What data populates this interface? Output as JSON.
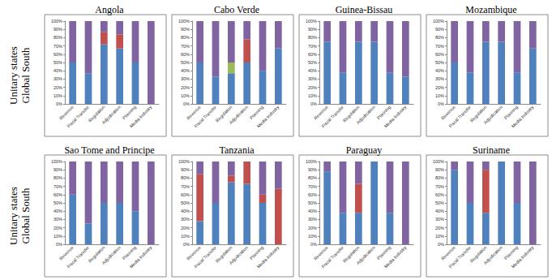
{
  "row_labels": [
    [
      "Unitary states",
      "Global South"
    ],
    [
      "Unitary states",
      "Global South"
    ]
  ],
  "chart_data": [
    {
      "type": "bar",
      "title": "Angola",
      "stacked": true,
      "grid": false,
      "categories": [
        "Revenue",
        "Fiscal Transfer",
        "Regulation",
        "Adjudication",
        "Planning",
        "Media Industry"
      ],
      "ylim": [
        0,
        100
      ],
      "yticks": [
        {
          "value": 0,
          "label": "0%"
        },
        {
          "value": 10,
          "label": "10%"
        },
        {
          "value": 20,
          "label": "20%"
        },
        {
          "value": 30,
          "label": "30%"
        },
        {
          "value": 40,
          "label": "40%"
        },
        {
          "value": 50,
          "label": "50%"
        },
        {
          "value": 60,
          "label": "60%"
        },
        {
          "value": 70,
          "label": "70%"
        },
        {
          "value": 80,
          "label": "80%"
        },
        {
          "value": 90,
          "label": "90%"
        },
        {
          "value": 100,
          "label": "100%"
        }
      ],
      "series": [
        {
          "color": "#4f81bd",
          "values": [
            50,
            37,
            72,
            67,
            50,
            0
          ]
        },
        {
          "color": "#c0504d",
          "values": [
            0,
            0,
            15,
            17,
            0,
            0
          ]
        },
        {
          "color": "#8064a2",
          "values": [
            50,
            63,
            13,
            16,
            50,
            100
          ]
        }
      ]
    },
    {
      "type": "bar",
      "title": "Cabo Verde",
      "stacked": true,
      "grid": false,
      "categories": [
        "Revenue",
        "Fiscal Transfer",
        "Regulation",
        "Adjudication",
        "Planning",
        "Media Industry"
      ],
      "ylim": [
        0,
        100
      ],
      "yticks": [
        {
          "value": 0,
          "label": "0%"
        },
        {
          "value": 10,
          "label": "10%"
        },
        {
          "value": 20,
          "label": "20%"
        },
        {
          "value": 30,
          "label": "30%"
        },
        {
          "value": 40,
          "label": "40%"
        },
        {
          "value": 50,
          "label": "50%"
        },
        {
          "value": 60,
          "label": "60%"
        },
        {
          "value": 70,
          "label": "70%"
        },
        {
          "value": 80,
          "label": "80%"
        },
        {
          "value": 90,
          "label": "90%"
        },
        {
          "value": 100,
          "label": "100%"
        }
      ],
      "series": [
        {
          "color": "#4f81bd",
          "values": [
            50,
            33,
            37,
            50,
            40,
            67
          ]
        },
        {
          "color": "#c0504d",
          "values": [
            0,
            0,
            0,
            28,
            0,
            0
          ]
        },
        {
          "color": "#9bbb59",
          "values": [
            0,
            0,
            13,
            0,
            0,
            0
          ]
        },
        {
          "color": "#8064a2",
          "values": [
            50,
            67,
            50,
            22,
            60,
            33
          ]
        }
      ]
    },
    {
      "type": "bar",
      "title": "Guinea-Bissau",
      "stacked": true,
      "grid": false,
      "categories": [
        "Revenue",
        "Fiscal Transfer",
        "Regulation",
        "Adjudication",
        "Planning",
        "Media Industry"
      ],
      "ylim": [
        0,
        100
      ],
      "yticks": [
        {
          "value": 0,
          "label": "0%"
        },
        {
          "value": 10,
          "label": "10%"
        },
        {
          "value": 20,
          "label": "20%"
        },
        {
          "value": 30,
          "label": "30%"
        },
        {
          "value": 40,
          "label": "40%"
        },
        {
          "value": 50,
          "label": "50%"
        },
        {
          "value": 60,
          "label": "60%"
        },
        {
          "value": 70,
          "label": "70%"
        },
        {
          "value": 80,
          "label": "80%"
        },
        {
          "value": 90,
          "label": "90%"
        },
        {
          "value": 100,
          "label": "100%"
        }
      ],
      "series": [
        {
          "color": "#4f81bd",
          "values": [
            75,
            38,
            75,
            75,
            38,
            33
          ]
        },
        {
          "color": "#8064a2",
          "values": [
            25,
            62,
            25,
            25,
            62,
            67
          ]
        }
      ]
    },
    {
      "type": "bar",
      "title": "Mozambique",
      "stacked": true,
      "grid": false,
      "categories": [
        "Revenue",
        "Fiscal Transfer",
        "Regulation",
        "Adjudication",
        "Planning",
        "Media Industry"
      ],
      "ylim": [
        0,
        100
      ],
      "yticks": [
        {
          "value": 0,
          "label": "0%"
        },
        {
          "value": 10,
          "label": "10%"
        },
        {
          "value": 20,
          "label": "20%"
        },
        {
          "value": 30,
          "label": "30%"
        },
        {
          "value": 40,
          "label": "40%"
        },
        {
          "value": 50,
          "label": "50%"
        },
        {
          "value": 60,
          "label": "60%"
        },
        {
          "value": 70,
          "label": "70%"
        },
        {
          "value": 80,
          "label": "80%"
        },
        {
          "value": 90,
          "label": "90%"
        },
        {
          "value": 100,
          "label": "100%"
        }
      ],
      "series": [
        {
          "color": "#4f81bd",
          "values": [
            50,
            38,
            75,
            75,
            38,
            67
          ]
        },
        {
          "color": "#8064a2",
          "values": [
            50,
            62,
            25,
            25,
            62,
            33
          ]
        }
      ]
    },
    {
      "type": "bar",
      "title": "Sao Tome and Principe",
      "stacked": true,
      "grid": false,
      "categories": [
        "Revenue",
        "Fiscal Transfer",
        "Regulation",
        "Adjudication",
        "Planning",
        "Media Industry"
      ],
      "ylim": [
        0,
        100
      ],
      "yticks": [
        {
          "value": 0,
          "label": "0%"
        },
        {
          "value": 10,
          "label": "10%"
        },
        {
          "value": 20,
          "label": "20%"
        },
        {
          "value": 30,
          "label": "30%"
        },
        {
          "value": 40,
          "label": "40%"
        },
        {
          "value": 50,
          "label": "50%"
        },
        {
          "value": 60,
          "label": "60%"
        },
        {
          "value": 70,
          "label": "70%"
        },
        {
          "value": 80,
          "label": "80%"
        },
        {
          "value": 90,
          "label": "90%"
        },
        {
          "value": 100,
          "label": "100%"
        }
      ],
      "series": [
        {
          "color": "#4f81bd",
          "values": [
            60,
            25,
            50,
            50,
            40,
            0
          ]
        },
        {
          "color": "#8064a2",
          "values": [
            40,
            75,
            50,
            50,
            60,
            100
          ]
        }
      ]
    },
    {
      "type": "bar",
      "title": "Tanzania",
      "stacked": true,
      "grid": false,
      "categories": [
        "Revenue",
        "Fiscal Transfer",
        "Regulation",
        "Adjudication",
        "Planning",
        "Media Industry"
      ],
      "ylim": [
        0,
        100
      ],
      "yticks": [
        {
          "value": 0,
          "label": "0%"
        },
        {
          "value": 10,
          "label": "10%"
        },
        {
          "value": 20,
          "label": "20%"
        },
        {
          "value": 30,
          "label": "30%"
        },
        {
          "value": 40,
          "label": "40%"
        },
        {
          "value": 50,
          "label": "50%"
        },
        {
          "value": 60,
          "label": "60%"
        },
        {
          "value": 70,
          "label": "70%"
        },
        {
          "value": 80,
          "label": "80%"
        },
        {
          "value": 90,
          "label": "90%"
        },
        {
          "value": 100,
          "label": "100%"
        }
      ],
      "series": [
        {
          "color": "#4f81bd",
          "values": [
            28,
            50,
            75,
            73,
            50,
            0
          ]
        },
        {
          "color": "#c0504d",
          "values": [
            57,
            0,
            8,
            27,
            10,
            67
          ]
        },
        {
          "color": "#8064a2",
          "values": [
            15,
            50,
            17,
            0,
            40,
            33
          ]
        }
      ]
    },
    {
      "type": "bar",
      "title": "Paraguay",
      "stacked": true,
      "grid": false,
      "categories": [
        "Revenue",
        "Fiscal Transfer",
        "Regulation",
        "Adjudication",
        "Planning",
        "Media Industry"
      ],
      "ylim": [
        0,
        100
      ],
      "yticks": [
        {
          "value": 0,
          "label": "0%"
        },
        {
          "value": 10,
          "label": "10%"
        },
        {
          "value": 20,
          "label": "20%"
        },
        {
          "value": 30,
          "label": "30%"
        },
        {
          "value": 40,
          "label": "40%"
        },
        {
          "value": 50,
          "label": "50%"
        },
        {
          "value": 60,
          "label": "60%"
        },
        {
          "value": 70,
          "label": "70%"
        },
        {
          "value": 80,
          "label": "80%"
        },
        {
          "value": 90,
          "label": "90%"
        },
        {
          "value": 100,
          "label": "100%"
        }
      ],
      "series": [
        {
          "color": "#4f81bd",
          "values": [
            88,
            38,
            38,
            100,
            38,
            0
          ]
        },
        {
          "color": "#c0504d",
          "values": [
            0,
            0,
            35,
            0,
            0,
            0
          ]
        },
        {
          "color": "#8064a2",
          "values": [
            12,
            62,
            27,
            0,
            62,
            100
          ]
        }
      ]
    },
    {
      "type": "bar",
      "title": "Suriname",
      "stacked": true,
      "grid": false,
      "categories": [
        "Revenue",
        "Fiscal Transfer",
        "Regulation",
        "Adjudication",
        "Planning",
        "Media Industry"
      ],
      "ylim": [
        0,
        100
      ],
      "yticks": [
        {
          "value": 0,
          "label": "0%"
        },
        {
          "value": 10,
          "label": "10%"
        },
        {
          "value": 20,
          "label": "20%"
        },
        {
          "value": 30,
          "label": "30%"
        },
        {
          "value": 40,
          "label": "40%"
        },
        {
          "value": 50,
          "label": "50%"
        },
        {
          "value": 60,
          "label": "60%"
        },
        {
          "value": 70,
          "label": "70%"
        },
        {
          "value": 80,
          "label": "80%"
        },
        {
          "value": 90,
          "label": "90%"
        },
        {
          "value": 100,
          "label": "100%"
        }
      ],
      "series": [
        {
          "color": "#4f81bd",
          "values": [
            90,
            50,
            38,
            100,
            50,
            0
          ]
        },
        {
          "color": "#c0504d",
          "values": [
            0,
            0,
            52,
            0,
            0,
            0
          ]
        },
        {
          "color": "#8064a2",
          "values": [
            10,
            50,
            10,
            0,
            50,
            100
          ]
        }
      ]
    }
  ]
}
